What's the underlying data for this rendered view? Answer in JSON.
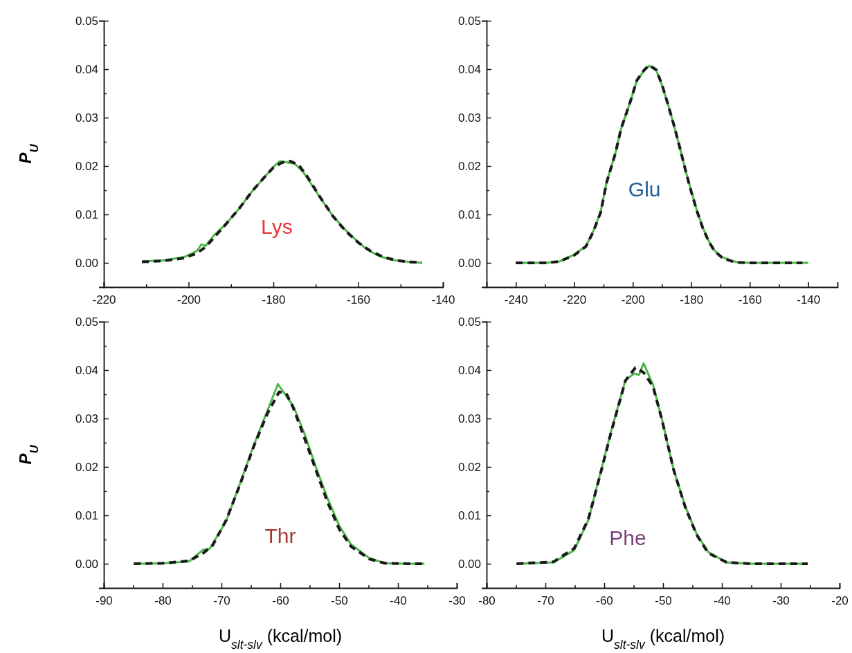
{
  "chart_data": [
    {
      "type": "line",
      "ylabel": "P$_{U}$",
      "xlim": [
        -220,
        -140
      ],
      "ylim": [
        -0.005,
        0.05
      ],
      "xticks": [
        -220,
        {
          "value": -210,
          "label": null
        },
        -200,
        {
          "value": -190,
          "label": null
        },
        -180,
        {
          "value": -170,
          "label": null
        },
        -160,
        {
          "value": -150,
          "label": null
        },
        -140
      ],
      "yticks": [
        {
          "value": 0,
          "label": "0.00"
        },
        {
          "value": 0.005,
          "label": null
        },
        {
          "value": 0.01,
          "label": "0.01"
        },
        {
          "value": 0.015,
          "label": null
        },
        {
          "value": 0.02,
          "label": "0.02"
        },
        {
          "value": 0.025,
          "label": null
        },
        {
          "value": 0.03,
          "label": "0.03"
        },
        {
          "value": 0.035,
          "label": null
        },
        {
          "value": 0.04,
          "label": "0.04"
        },
        {
          "value": 0.045,
          "label": null
        },
        {
          "value": 0.05,
          "label": "0.05"
        }
      ],
      "annotations": [
        "Lys"
      ],
      "series": [
        {
          "color": "#4cb848",
          "line_style": "solid",
          "x": [
            -211,
            -206,
            -201,
            -198,
            -197,
            -196,
            -194,
            -191,
            -188,
            -185,
            -182,
            -180,
            -178.5,
            -177,
            -175,
            -173,
            -172,
            -169,
            -166,
            -163,
            -160.6,
            -158,
            -155,
            -152,
            -148,
            -145
          ],
          "values": [
            0.0003,
            0.0005,
            0.0012,
            0.0025,
            0.0038,
            0.0035,
            0.0057,
            0.0082,
            0.0113,
            0.0148,
            0.0178,
            0.0198,
            0.021,
            0.0208,
            0.0205,
            0.0188,
            0.0175,
            0.0135,
            0.0097,
            0.0068,
            0.0048,
            0.0028,
            0.0014,
            0.0006,
            0.0002,
            0.0
          ]
        },
        {
          "color": "#1a1a1a",
          "line_style": "dashed",
          "x": [
            -211,
            -206,
            -201,
            -198,
            -196,
            -194,
            -191,
            -188,
            -185,
            -182,
            -180,
            -178,
            -176,
            -174,
            -172,
            -169,
            -166,
            -163,
            -160,
            -157,
            -154,
            -151,
            -148,
            -145
          ],
          "values": [
            0.0002,
            0.0004,
            0.001,
            0.002,
            0.0033,
            0.0052,
            0.0082,
            0.0113,
            0.0148,
            0.0178,
            0.0197,
            0.0207,
            0.021,
            0.0202,
            0.0178,
            0.0136,
            0.0097,
            0.0066,
            0.0042,
            0.0024,
            0.0012,
            0.0005,
            0.0002,
            0.0001
          ]
        }
      ]
    },
    {
      "type": "line",
      "xlim": [
        -250,
        -130
      ],
      "ylim": [
        -0.005,
        0.05
      ],
      "xticks": [
        -240,
        {
          "value": -230,
          "label": null
        },
        -220,
        {
          "value": -210,
          "label": null
        },
        -200,
        {
          "value": -190,
          "label": null
        },
        -180,
        {
          "value": -170,
          "label": null
        },
        -160,
        {
          "value": -150,
          "label": null
        },
        -140
      ],
      "yticks": [
        {
          "value": 0,
          "label": "0.00"
        },
        {
          "value": 0.005,
          "label": null
        },
        {
          "value": 0.01,
          "label": "0.01"
        },
        {
          "value": 0.015,
          "label": null
        },
        {
          "value": 0.02,
          "label": "0.02"
        },
        {
          "value": 0.025,
          "label": null
        },
        {
          "value": 0.03,
          "label": "0.03"
        },
        {
          "value": 0.035,
          "label": null
        },
        {
          "value": 0.04,
          "label": "0.04"
        },
        {
          "value": 0.045,
          "label": null
        },
        {
          "value": 0.05,
          "label": "0.05"
        }
      ],
      "annotations": [
        "Glu"
      ],
      "series": [
        {
          "color": "#4cb848",
          "line_style": "solid",
          "x": [
            -240,
            -230,
            -225,
            -220,
            -216,
            -213.6,
            -211,
            -208.9,
            -206,
            -204,
            -201,
            -198.6,
            -196,
            -194.4,
            -192,
            -190,
            -188,
            -186,
            -184,
            -182,
            -180,
            -178,
            -176,
            -174,
            -172,
            -169.5,
            -166,
            -164,
            -160,
            -150,
            -140
          ],
          "values": [
            0,
            0,
            0.0003,
            0.0017,
            0.0035,
            0.0064,
            0.0105,
            0.0168,
            0.0225,
            0.0277,
            0.033,
            0.0376,
            0.0398,
            0.0407,
            0.0398,
            0.0367,
            0.0328,
            0.0286,
            0.024,
            0.0192,
            0.0148,
            0.0107,
            0.0072,
            0.0045,
            0.0025,
            0.0012,
            0.0004,
            0.0001,
            0,
            0,
            0
          ]
        },
        {
          "color": "#1a1a1a",
          "line_style": "dashed",
          "x": [
            -240,
            -230,
            -225,
            -220,
            -216,
            -213.6,
            -211,
            -208.9,
            -206,
            -204,
            -201,
            -198.6,
            -196,
            -194.4,
            -192,
            -190,
            -188,
            -186,
            -184,
            -182,
            -180,
            -178,
            -176,
            -174,
            -172,
            -169.5,
            -166,
            -164,
            -160,
            -150,
            -142
          ],
          "values": [
            0,
            0,
            0.0003,
            0.0016,
            0.0034,
            0.0063,
            0.0104,
            0.0167,
            0.0225,
            0.0277,
            0.033,
            0.0377,
            0.0399,
            0.0408,
            0.0399,
            0.0368,
            0.0328,
            0.0286,
            0.024,
            0.0192,
            0.0147,
            0.0106,
            0.0071,
            0.0044,
            0.0024,
            0.0011,
            0.0003,
            0.0001,
            0,
            0,
            0
          ]
        }
      ]
    },
    {
      "type": "line",
      "xlabel": "U$_{slt-slv}$ (kcal/mol)",
      "ylabel": "P$_{U}$",
      "xlim": [
        -90,
        -30
      ],
      "ylim": [
        -0.005,
        0.05
      ],
      "xticks": [
        -90,
        {
          "value": -85,
          "label": null
        },
        -80,
        {
          "value": -75,
          "label": null
        },
        -70,
        {
          "value": -65,
          "label": null
        },
        -60,
        {
          "value": -55,
          "label": null
        },
        -50,
        {
          "value": -45,
          "label": null
        },
        -40,
        {
          "value": -35,
          "label": null
        },
        -30
      ],
      "yticks": [
        {
          "value": 0,
          "label": "0.00"
        },
        {
          "value": 0.005,
          "label": null
        },
        {
          "value": 0.01,
          "label": "0.01"
        },
        {
          "value": 0.015,
          "label": null
        },
        {
          "value": 0.02,
          "label": "0.02"
        },
        {
          "value": 0.025,
          "label": null
        },
        {
          "value": 0.03,
          "label": "0.03"
        },
        {
          "value": 0.035,
          "label": null
        },
        {
          "value": 0.04,
          "label": "0.04"
        },
        {
          "value": 0.045,
          "label": null
        },
        {
          "value": 0.05,
          "label": "0.05"
        }
      ],
      "annotations": [
        "Thr"
      ],
      "series": [
        {
          "color": "#4cb848",
          "line_style": "solid",
          "x": [
            -84.9,
            -80,
            -75.5,
            -73.1,
            -72,
            -69.2,
            -66.9,
            -64.5,
            -62.2,
            -60.4,
            -57.8,
            -55.9,
            -53.9,
            -52,
            -50,
            -48,
            -44.9,
            -42.2,
            -38,
            -35.5
          ],
          "values": [
            0,
            0.0001,
            0.0005,
            0.0029,
            0.0031,
            0.0088,
            0.0164,
            0.0245,
            0.0316,
            0.0371,
            0.0326,
            0.0269,
            0.0198,
            0.0136,
            0.0079,
            0.004,
            0.0012,
            0.0001,
            0,
            0
          ]
        },
        {
          "color": "#1a1a1a",
          "line_style": "dashed",
          "x": [
            -84.9,
            -80,
            -75.5,
            -73.1,
            -71.5,
            -69.2,
            -66.9,
            -64.5,
            -62.2,
            -60.2,
            -59,
            -57.8,
            -55.9,
            -53.9,
            -52,
            -50,
            -48,
            -44.9,
            -42.2,
            -38,
            -35.5
          ],
          "values": [
            0,
            0.0001,
            0.0006,
            0.0022,
            0.0038,
            0.009,
            0.0162,
            0.0243,
            0.031,
            0.0355,
            0.0352,
            0.0322,
            0.026,
            0.0192,
            0.0128,
            0.0072,
            0.0036,
            0.001,
            0.0001,
            0,
            0
          ]
        }
      ]
    },
    {
      "type": "line",
      "xlabel": "U$_{slt-slv}$ (kcal/mol)",
      "xlim": [
        -80,
        -20
      ],
      "ylim": [
        -0.005,
        0.05
      ],
      "xticks": [
        -80,
        {
          "value": -75,
          "label": null
        },
        -70,
        {
          "value": -65,
          "label": null
        },
        -60,
        {
          "value": -55,
          "label": null
        },
        -50,
        {
          "value": -45,
          "label": null
        },
        -40,
        {
          "value": -35,
          "label": null
        },
        -30,
        {
          "value": -25,
          "label": null
        },
        -20
      ],
      "yticks": [
        {
          "value": 0,
          "label": "0.00"
        },
        {
          "value": 0.005,
          "label": null
        },
        {
          "value": 0.01,
          "label": "0.01"
        },
        {
          "value": 0.015,
          "label": null
        },
        {
          "value": 0.02,
          "label": "0.02"
        },
        {
          "value": 0.025,
          "label": null
        },
        {
          "value": 0.03,
          "label": "0.03"
        },
        {
          "value": 0.035,
          "label": null
        },
        {
          "value": 0.04,
          "label": "0.04"
        },
        {
          "value": 0.045,
          "label": null
        },
        {
          "value": 0.05,
          "label": "0.05"
        }
      ],
      "annotations": [
        "Phe"
      ],
      "series": [
        {
          "color": "#4cb848",
          "line_style": "solid",
          "x": [
            -74.9,
            -68.6,
            -65.1,
            -62.7,
            -60.7,
            -58.8,
            -56.4,
            -54.9,
            -54.1,
            -53.3,
            -51.7,
            -50.2,
            -48.2,
            -46.2,
            -44.3,
            -42.3,
            -39.2,
            -35,
            -25.4
          ],
          "values": [
            0,
            0.0003,
            0.0028,
            0.009,
            0.0185,
            0.0275,
            0.0379,
            0.0393,
            0.039,
            0.0414,
            0.0369,
            0.0299,
            0.0194,
            0.0118,
            0.0062,
            0.0024,
            0.0003,
            0,
            0
          ]
        },
        {
          "color": "#1a1a1a",
          "line_style": "dashed",
          "x": [
            -74.9,
            -68.6,
            -65.1,
            -62.7,
            -60.7,
            -58.8,
            -56.4,
            -54.7,
            -53.3,
            -51.7,
            -50.2,
            -48.2,
            -46.2,
            -44.3,
            -42.3,
            -39.2,
            -35,
            -25.4
          ],
          "values": [
            0,
            0.0004,
            0.0032,
            0.0092,
            0.0183,
            0.0273,
            0.0378,
            0.0405,
            0.0395,
            0.0366,
            0.0298,
            0.0194,
            0.0116,
            0.006,
            0.0022,
            0.0003,
            0,
            0
          ]
        }
      ]
    }
  ]
}
